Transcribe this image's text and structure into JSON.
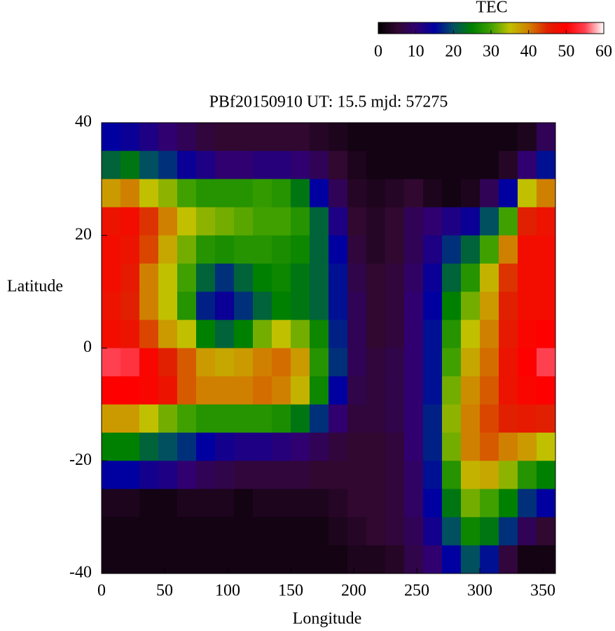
{
  "chart_data": {
    "type": "heatmap",
    "title": "PBf20150910  UT: 15.5  mjd: 57275",
    "xlabel": "Longitude",
    "ylabel": "Latitude",
    "colorbar_label": "TEC",
    "xlim": [
      0,
      360
    ],
    "ylim": [
      -40,
      40
    ],
    "xticks": [
      0,
      50,
      100,
      150,
      200,
      250,
      300,
      350
    ],
    "yticks": [
      40,
      20,
      0,
      -20,
      -40
    ],
    "clim": [
      0,
      60
    ],
    "cticks": [
      0,
      10,
      20,
      30,
      40,
      50,
      60
    ],
    "colormap": [
      "#000000",
      "#300830",
      "#300070",
      "#0000a0",
      "#005060",
      "#008000",
      "#40a000",
      "#c0c000",
      "#d08000",
      "#e02000",
      "#ff0000",
      "#ff4050",
      "#ffffff"
    ],
    "x": [
      7.5,
      22.5,
      37.5,
      52.5,
      67.5,
      82.5,
      97.5,
      112.5,
      127.5,
      142.5,
      157.5,
      172.5,
      187.5,
      202.5,
      217.5,
      232.5,
      247.5,
      262.5,
      277.5,
      292.5,
      307.5,
      322.5,
      337.5,
      352.5
    ],
    "y": [
      37.5,
      32.5,
      27.5,
      22.5,
      17.5,
      12.5,
      7.5,
      2.5,
      -2.5,
      -7.5,
      -12.5,
      -17.5,
      -22.5,
      -27.5,
      -32.5,
      -37.5
    ],
    "z": [
      [
        15,
        14,
        12,
        10,
        8,
        6,
        5,
        5,
        5,
        5,
        5,
        4,
        3,
        2,
        2,
        2,
        2,
        2,
        2,
        2,
        2,
        2,
        3,
        8
      ],
      [
        22,
        24,
        20,
        18,
        14,
        12,
        10,
        10,
        11,
        11,
        10,
        8,
        5,
        3,
        2,
        2,
        2,
        2,
        2,
        2,
        2,
        4,
        10,
        16
      ],
      [
        38,
        40,
        35,
        33,
        30,
        28,
        28,
        28,
        29,
        28,
        24,
        15,
        8,
        4,
        3,
        4,
        5,
        3,
        2,
        3,
        8,
        15,
        35,
        40
      ],
      [
        47,
        48,
        44,
        40,
        35,
        33,
        32,
        31,
        30,
        30,
        28,
        22,
        12,
        5,
        4,
        5,
        8,
        10,
        12,
        14,
        20,
        30,
        45,
        47
      ],
      [
        48,
        47,
        43,
        37,
        32,
        28,
        27,
        28,
        28,
        27,
        26,
        22,
        15,
        6,
        4,
        5,
        8,
        12,
        18,
        22,
        30,
        40,
        48,
        48
      ],
      [
        48,
        46,
        40,
        35,
        30,
        22,
        18,
        22,
        25,
        26,
        24,
        22,
        16,
        7,
        5,
        6,
        9,
        14,
        22,
        28,
        36,
        44,
        48,
        48
      ],
      [
        47,
        45,
        40,
        35,
        28,
        17,
        14,
        18,
        22,
        25,
        24,
        22,
        16,
        8,
        5,
        6,
        10,
        15,
        25,
        32,
        38,
        45,
        48,
        48
      ],
      [
        48,
        47,
        43,
        38,
        35,
        25,
        22,
        25,
        32,
        35,
        32,
        26,
        17,
        8,
        5,
        6,
        10,
        16,
        28,
        35,
        40,
        46,
        49,
        50
      ],
      [
        55,
        54,
        49,
        45,
        42,
        38,
        37,
        38,
        40,
        41,
        38,
        28,
        18,
        8,
        6,
        7,
        10,
        16,
        30,
        37,
        41,
        47,
        50,
        55
      ],
      [
        50,
        50,
        49,
        47,
        42,
        40,
        40,
        40,
        41,
        40,
        36,
        26,
        15,
        7,
        6,
        7,
        10,
        16,
        32,
        39,
        42,
        47,
        49,
        50
      ],
      [
        38,
        38,
        35,
        32,
        30,
        28,
        28,
        28,
        28,
        27,
        24,
        18,
        10,
        6,
        6,
        7,
        10,
        17,
        33,
        40,
        43,
        45,
        46,
        45
      ],
      [
        25,
        25,
        22,
        20,
        18,
        15,
        13,
        12,
        12,
        11,
        10,
        8,
        6,
        5,
        5,
        6,
        10,
        17,
        32,
        40,
        42,
        40,
        38,
        35
      ],
      [
        15,
        15,
        13,
        12,
        10,
        8,
        7,
        6,
        6,
        6,
        6,
        5,
        5,
        5,
        5,
        6,
        9,
        16,
        28,
        36,
        37,
        33,
        28,
        25
      ],
      [
        3,
        3,
        2,
        2,
        3,
        3,
        3,
        2,
        3,
        3,
        3,
        3,
        4,
        5,
        5,
        6,
        9,
        15,
        24,
        32,
        30,
        25,
        18,
        15
      ],
      [
        2,
        2,
        2,
        2,
        2,
        2,
        2,
        2,
        2,
        2,
        2,
        2,
        3,
        4,
        5,
        6,
        8,
        13,
        20,
        26,
        24,
        18,
        8,
        5
      ],
      [
        2,
        2,
        2,
        2,
        2,
        2,
        2,
        2,
        2,
        2,
        2,
        2,
        2,
        3,
        3,
        4,
        7,
        10,
        15,
        20,
        16,
        6,
        2,
        2
      ]
    ]
  }
}
